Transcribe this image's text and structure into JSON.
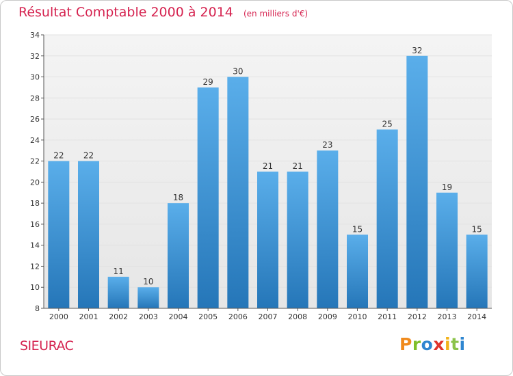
{
  "chart_data": {
    "type": "bar",
    "title": "Résultat Comptable 2000 à 2014",
    "subtitle": "(en milliers d'€)",
    "categories": [
      "2000",
      "2001",
      "2002",
      "2003",
      "2004",
      "2005",
      "2006",
      "2007",
      "2008",
      "2009",
      "2010",
      "2011",
      "2012",
      "2013",
      "2014"
    ],
    "values": [
      22,
      22,
      11,
      10,
      18,
      29,
      30,
      21,
      21,
      23,
      15,
      25,
      32,
      19,
      15
    ],
    "ylim": [
      8,
      34
    ],
    "yticks": [
      8,
      10,
      12,
      14,
      16,
      18,
      20,
      22,
      24,
      26,
      28,
      30,
      32,
      34
    ],
    "xlabel": "",
    "ylabel": "",
    "grid": true,
    "legend": "none",
    "colors": {
      "bar_top": "#5aaeea",
      "bar_bottom": "#2576b8",
      "grid": "#e2e2e2",
      "plot_bg": "#ececec",
      "axis": "#555555",
      "title": "#d5224f"
    }
  },
  "commune": "SIEURAC",
  "logo": {
    "text": "Proxiti",
    "letters": [
      {
        "ch": "P",
        "color": "#f08a1c"
      },
      {
        "ch": "r",
        "color": "#7fbf2a"
      },
      {
        "ch": "o",
        "color": "#2f86d0"
      },
      {
        "ch": "x",
        "color": "#e0342b"
      },
      {
        "ch": "i",
        "color": "#f2b21a"
      },
      {
        "ch": "t",
        "color": "#8bc34a"
      },
      {
        "ch": "i",
        "color": "#2f86d0"
      }
    ]
  }
}
